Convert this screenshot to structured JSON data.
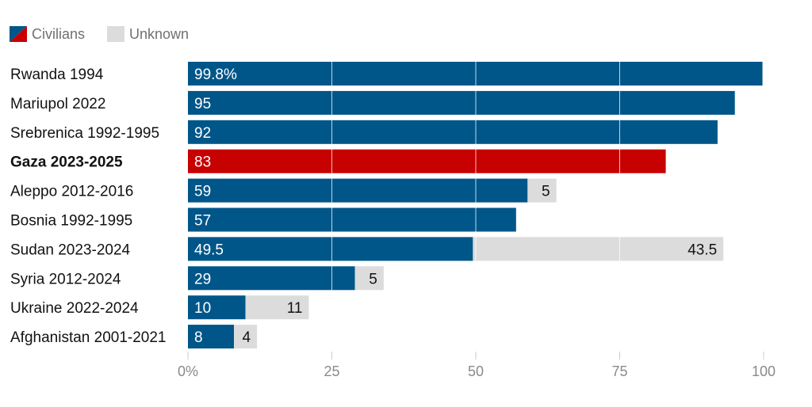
{
  "legend": [
    {
      "name": "Civilians",
      "icon": "civilians-swatch-icon"
    },
    {
      "name": "Unknown",
      "icon": "unknown-swatch-icon"
    }
  ],
  "colors": {
    "civilians": "#005689",
    "highlight": "#c70000",
    "unknown": "#dcdcdc",
    "gridline": "#ffffff"
  },
  "chart_data": {
    "type": "bar",
    "orientation": "horizontal",
    "stacked": true,
    "categories": [
      "Rwanda 1994",
      "Mariupol 2022",
      "Srebrenica 1992-1995",
      "Gaza 2023-2025",
      "Aleppo 2012-2016",
      "Bosnia 1992-1995",
      "Sudan 2023-2024",
      "Syria 2012-2024",
      "Ukraine 2022-2024",
      "Afghanistan 2001-2021"
    ],
    "highlighted_category": "Gaza 2023-2025",
    "series": [
      {
        "name": "Civilians",
        "values": [
          99.8,
          95,
          92,
          83,
          59,
          57,
          49.5,
          29,
          10,
          8
        ],
        "labels": [
          "99.8%",
          "95",
          "92",
          "83",
          "59",
          "57",
          "49.5",
          "29",
          "10",
          "8"
        ]
      },
      {
        "name": "Unknown",
        "values": [
          null,
          null,
          null,
          null,
          5,
          null,
          43.5,
          5,
          11,
          4
        ],
        "labels": [
          "",
          "",
          "",
          "",
          "5",
          "",
          "43.5",
          "5",
          "11",
          "4"
        ]
      }
    ],
    "xlim": [
      0,
      100
    ],
    "xticks": [
      0,
      25,
      50,
      75,
      100
    ],
    "xtick_labels": [
      "0%",
      "25",
      "50",
      "75",
      "100"
    ],
    "grid": true,
    "legend_position": "top-left"
  }
}
